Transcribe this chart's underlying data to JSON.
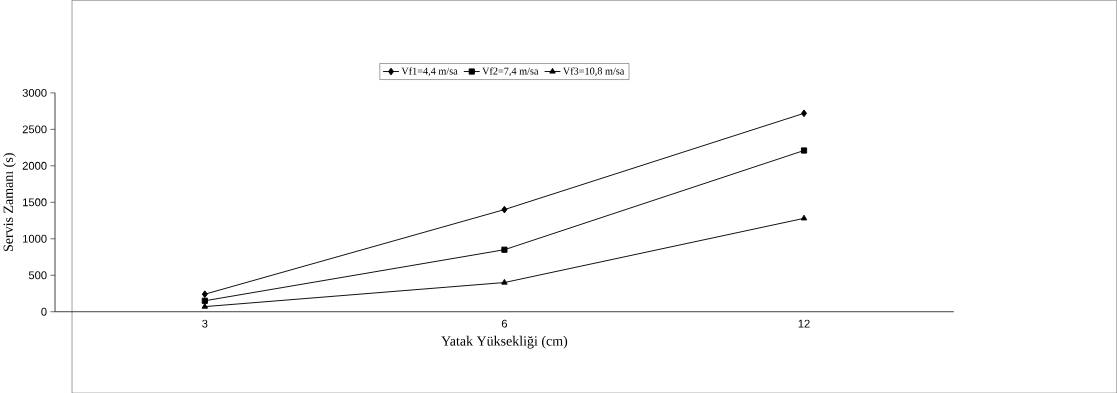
{
  "chart_data": {
    "type": "line",
    "xlabel": "Yatak Yüksekliği (cm)",
    "ylabel": "Servis Zamanı (s)",
    "categories": [
      "3",
      "6",
      "12"
    ],
    "series": [
      {
        "name": "Vf1=4,4 m/sa",
        "color": "#000000",
        "marker": "diamond",
        "values": [
          240,
          1400,
          2720
        ]
      },
      {
        "name": "Vf2=7,4 m/sa",
        "color": "#000000",
        "marker": "square",
        "values": [
          150,
          850,
          2210
        ]
      },
      {
        "name": "Vf3=10,8 m/sa",
        "color": "#000000",
        "marker": "triangle",
        "values": [
          70,
          400,
          1280
        ]
      }
    ],
    "ylim": [
      0,
      3000
    ],
    "yticks": [
      0,
      500,
      1000,
      1500,
      2000,
      2500,
      3000
    ],
    "grid": false,
    "legend": "top"
  }
}
